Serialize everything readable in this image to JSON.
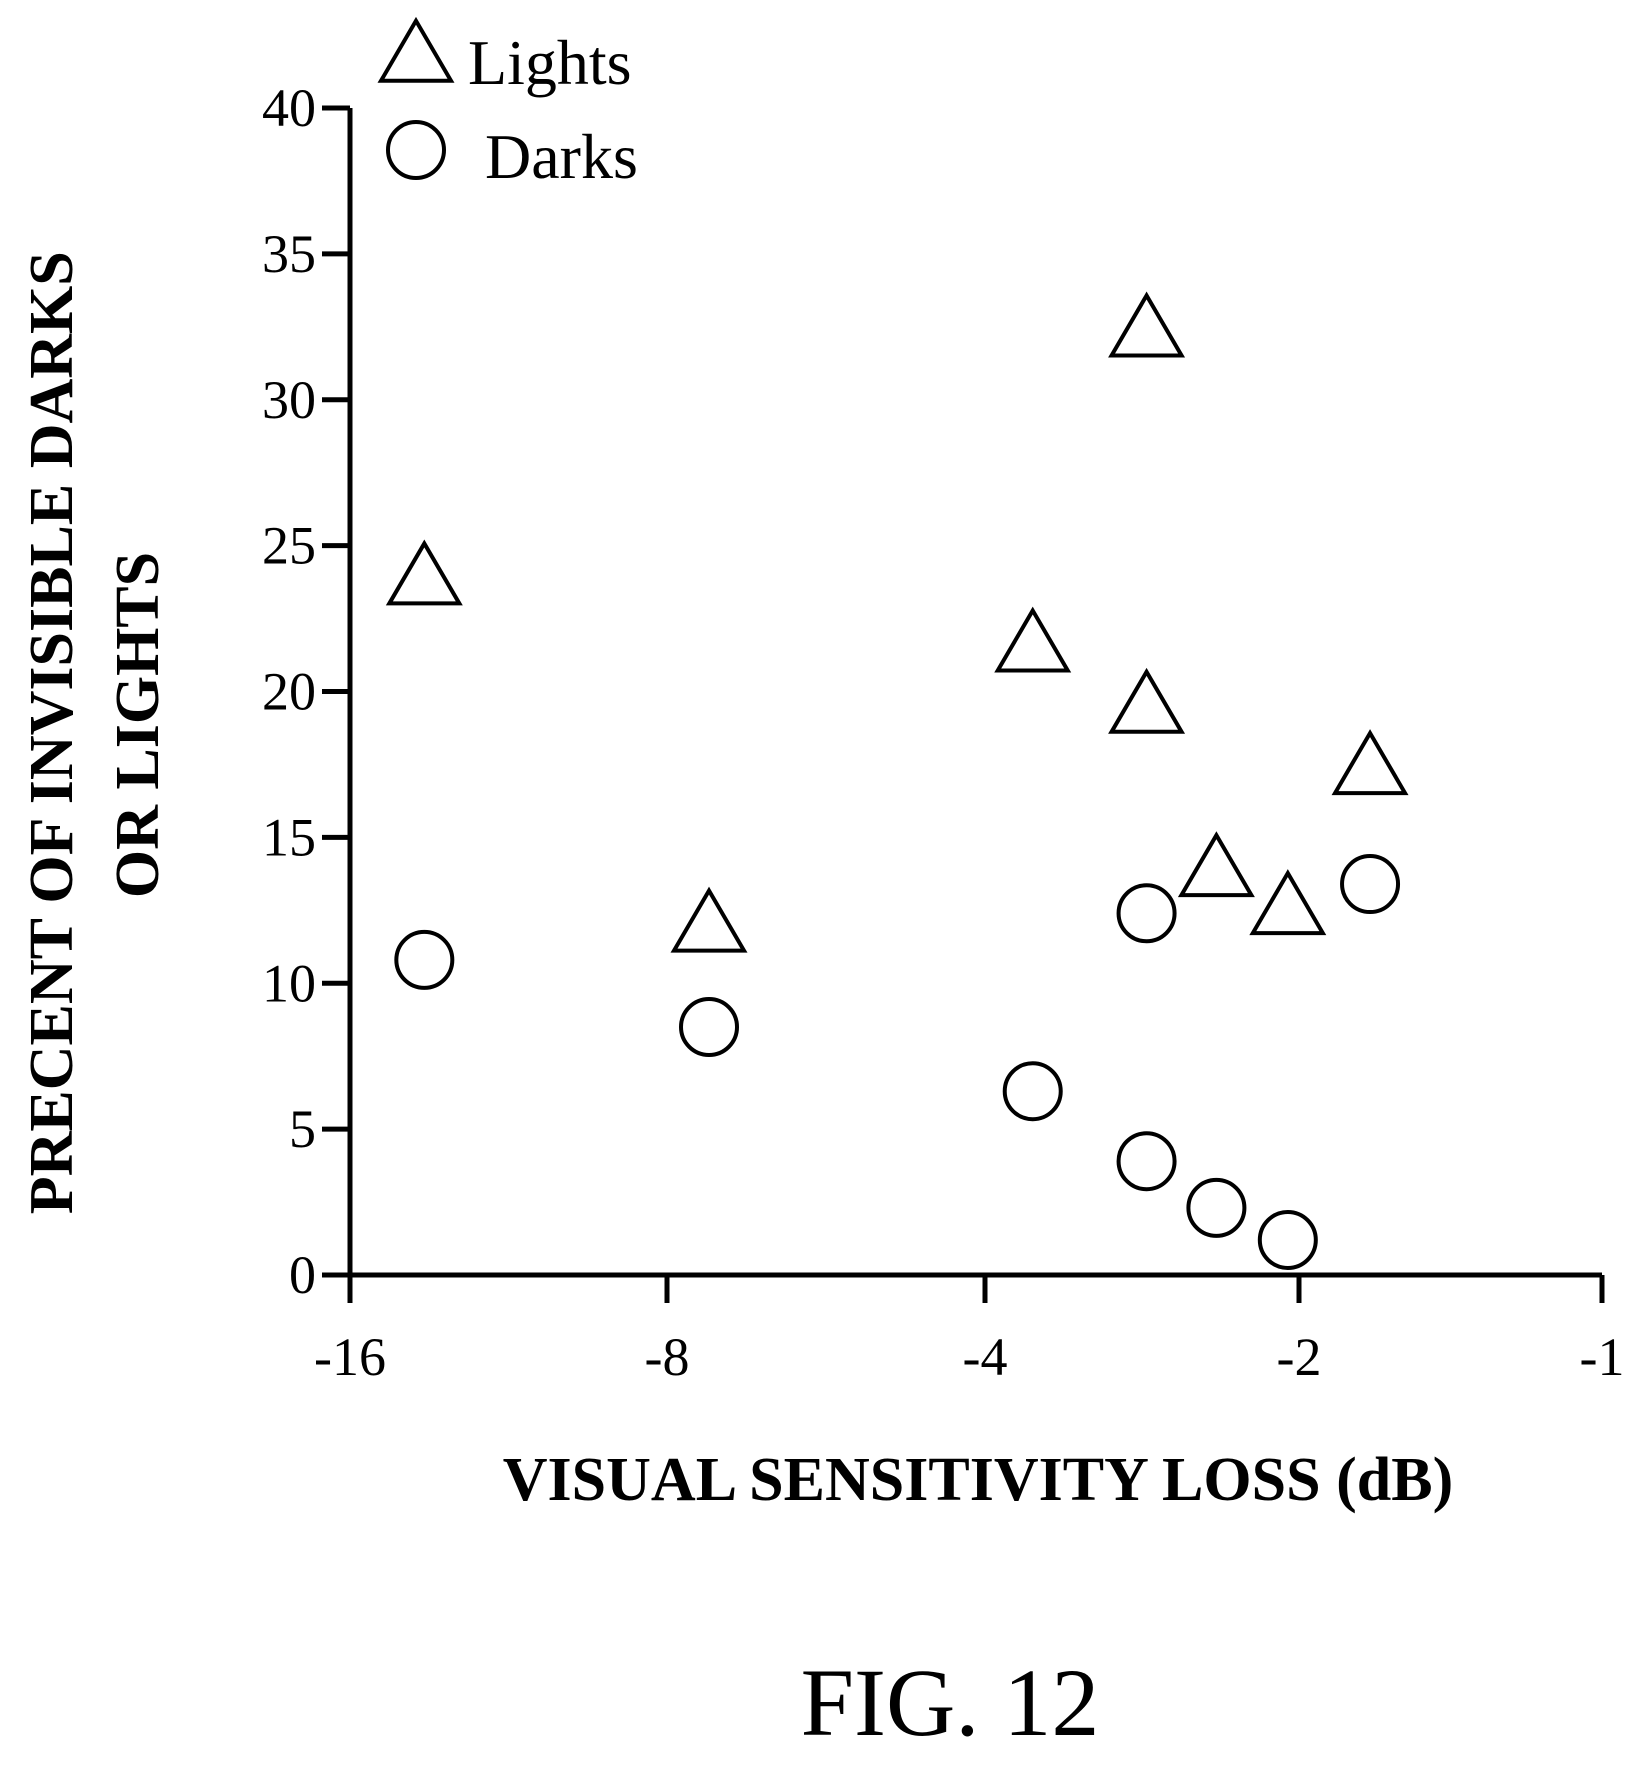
{
  "figure": {
    "caption": "FIG. 12"
  },
  "chart_data": {
    "type": "scatter",
    "title": "",
    "xlabel": "VISUAL SENSITIVITY LOSS (dB)",
    "ylabel_lines": [
      "PRECENT OF INVISIBLE DARKS",
      "OR LIGHTS"
    ],
    "x_categories": [
      "-16",
      "-8",
      "-4",
      "-2",
      "-1"
    ],
    "y_ticks": [
      0,
      5,
      10,
      15,
      20,
      25,
      30,
      35,
      40
    ],
    "ylim": [
      0,
      40
    ],
    "grid": false,
    "legend_position": "top-left",
    "series": [
      {
        "name": "Lights",
        "marker": "triangle",
        "color": "#000000",
        "points": [
          {
            "x": -13.6,
            "y": 23.8
          },
          {
            "x": -7.3,
            "y": 11.9
          },
          {
            "x": -3.6,
            "y": 21.5
          },
          {
            "x": -2.8,
            "y": 32.3
          },
          {
            "x": -2.8,
            "y": 19.4
          },
          {
            "x": -2.4,
            "y": 13.8
          },
          {
            "x": -2.05,
            "y": 12.5
          },
          {
            "x": -1.7,
            "y": 17.3
          }
        ]
      },
      {
        "name": "Darks",
        "marker": "circle",
        "color": "#000000",
        "points": [
          {
            "x": -13.6,
            "y": 10.8
          },
          {
            "x": -7.3,
            "y": 8.5
          },
          {
            "x": -3.6,
            "y": 6.3
          },
          {
            "x": -2.8,
            "y": 3.9
          },
          {
            "x": -2.8,
            "y": 12.4
          },
          {
            "x": -2.4,
            "y": 2.3
          },
          {
            "x": -2.05,
            "y": 1.2
          },
          {
            "x": -1.7,
            "y": 13.4
          }
        ]
      }
    ]
  }
}
